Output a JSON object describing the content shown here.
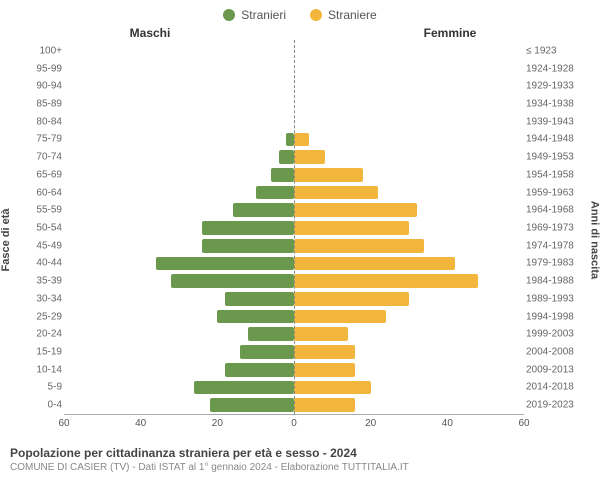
{
  "chart": {
    "type": "population-pyramid",
    "legend": {
      "male": "Stranieri",
      "female": "Straniere"
    },
    "colors": {
      "male": "#6a994e",
      "female": "#f2b63c",
      "grid": "#e0e0e0",
      "axis": "#aaaaaa",
      "center_line": "#888888",
      "bg": "#ffffff"
    },
    "header_left": "Maschi",
    "header_right": "Femmine",
    "yaxis_left_title": "Fasce di età",
    "yaxis_right_title": "Anni di nascita",
    "x_max": 60,
    "x_ticks": [
      60,
      40,
      20,
      0,
      20,
      40,
      60
    ],
    "age_groups": [
      {
        "label": "100+",
        "year": "≤ 1923",
        "m": 0,
        "f": 0
      },
      {
        "label": "95-99",
        "year": "1924-1928",
        "m": 0,
        "f": 0
      },
      {
        "label": "90-94",
        "year": "1929-1933",
        "m": 0,
        "f": 0
      },
      {
        "label": "85-89",
        "year": "1934-1938",
        "m": 0,
        "f": 0
      },
      {
        "label": "80-84",
        "year": "1939-1943",
        "m": 0,
        "f": 0
      },
      {
        "label": "75-79",
        "year": "1944-1948",
        "m": 2,
        "f": 4
      },
      {
        "label": "70-74",
        "year": "1949-1953",
        "m": 4,
        "f": 8
      },
      {
        "label": "65-69",
        "year": "1954-1958",
        "m": 6,
        "f": 18
      },
      {
        "label": "60-64",
        "year": "1959-1963",
        "m": 10,
        "f": 22
      },
      {
        "label": "55-59",
        "year": "1964-1968",
        "m": 16,
        "f": 32
      },
      {
        "label": "50-54",
        "year": "1969-1973",
        "m": 24,
        "f": 30
      },
      {
        "label": "45-49",
        "year": "1974-1978",
        "m": 24,
        "f": 34
      },
      {
        "label": "40-44",
        "year": "1979-1983",
        "m": 36,
        "f": 42
      },
      {
        "label": "35-39",
        "year": "1984-1988",
        "m": 32,
        "f": 48
      },
      {
        "label": "30-34",
        "year": "1989-1993",
        "m": 18,
        "f": 30
      },
      {
        "label": "25-29",
        "year": "1994-1998",
        "m": 20,
        "f": 24
      },
      {
        "label": "20-24",
        "year": "1999-2003",
        "m": 12,
        "f": 14
      },
      {
        "label": "15-19",
        "year": "2004-2008",
        "m": 14,
        "f": 16
      },
      {
        "label": "10-14",
        "year": "2009-2013",
        "m": 18,
        "f": 16
      },
      {
        "label": "5-9",
        "year": "2014-2018",
        "m": 26,
        "f": 20
      },
      {
        "label": "0-4",
        "year": "2019-2023",
        "m": 22,
        "f": 16
      }
    ],
    "bar_fill_ratio": 0.78
  },
  "footer": {
    "title": "Popolazione per cittadinanza straniera per età e sesso - 2024",
    "sub": "COMUNE DI CASIER (TV) - Dati ISTAT al 1° gennaio 2024 - Elaborazione TUTTITALIA.IT"
  }
}
